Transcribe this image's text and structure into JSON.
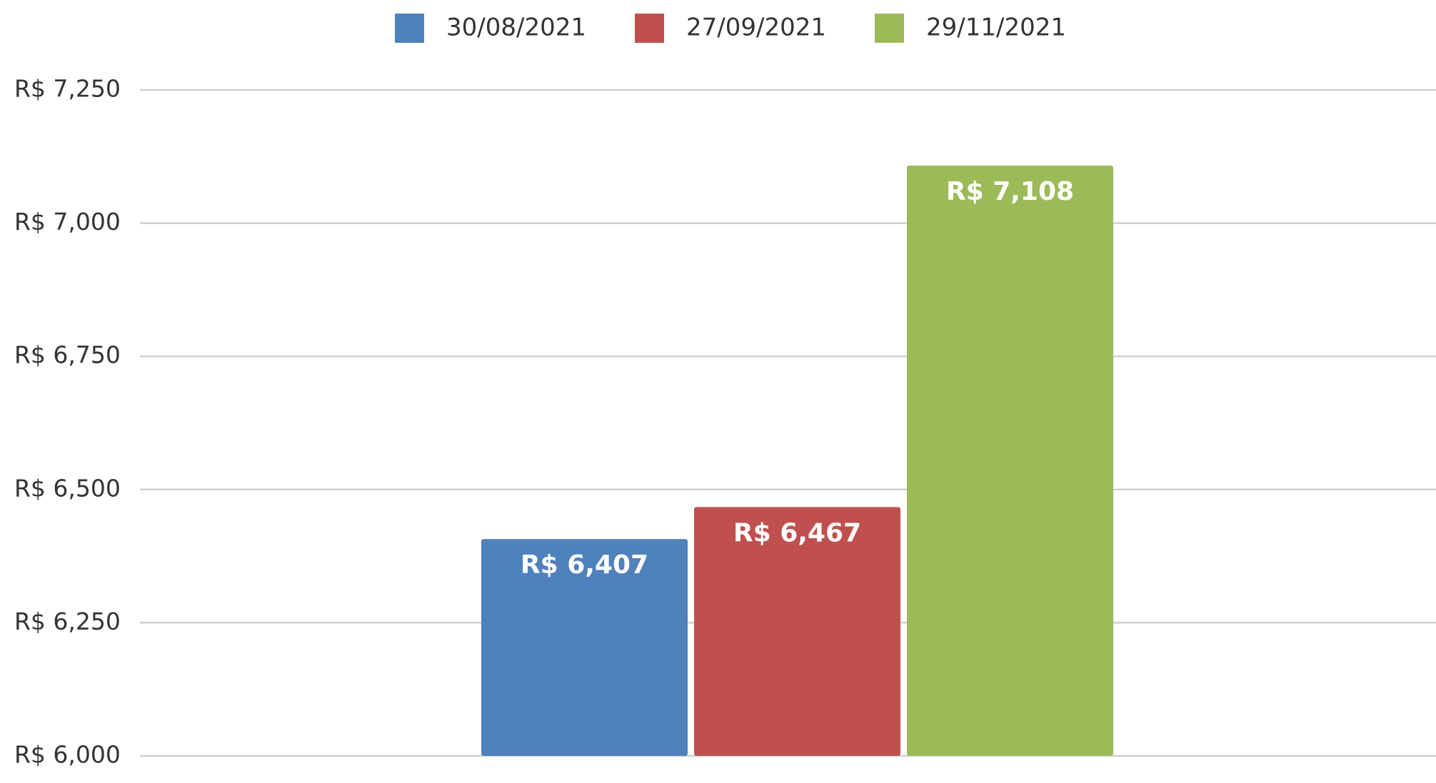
{
  "chart_data": {
    "type": "bar",
    "categories": [
      null
    ],
    "series": [
      {
        "name": "30/08/2021",
        "color": "#4f81bd",
        "values": [
          6407
        ],
        "value_labels": [
          "R$ 6,407"
        ]
      },
      {
        "name": "27/09/2021",
        "color": "#c0504d",
        "values": [
          6467
        ],
        "value_labels": [
          "R$ 6,467"
        ]
      },
      {
        "name": "29/11/2021",
        "color": "#9bbb59",
        "values": [
          7108
        ],
        "value_labels": [
          "R$ 7,108"
        ]
      }
    ],
    "ylim": [
      6000,
      7250
    ],
    "yticks": [
      {
        "value": 6000,
        "label": "R$ 6,000"
      },
      {
        "value": 6250,
        "label": "R$ 6,250"
      },
      {
        "value": 6500,
        "label": "R$ 6,500"
      },
      {
        "value": 6750,
        "label": "R$ 6,750"
      },
      {
        "value": 7000,
        "label": "R$ 7,000"
      },
      {
        "value": 7250,
        "label": "R$ 7,250"
      }
    ],
    "grid": true,
    "legend": "top"
  }
}
